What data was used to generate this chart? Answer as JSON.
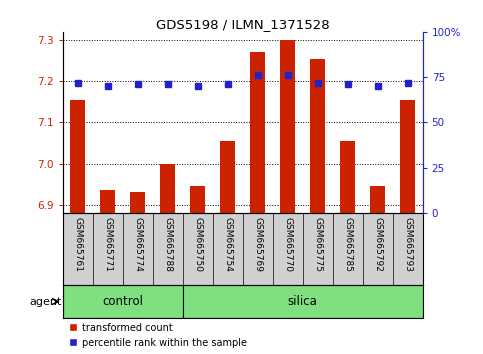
{
  "title": "GDS5198 / ILMN_1371528",
  "samples": [
    "GSM665761",
    "GSM665771",
    "GSM665774",
    "GSM665788",
    "GSM665750",
    "GSM665754",
    "GSM665769",
    "GSM665770",
    "GSM665775",
    "GSM665785",
    "GSM665792",
    "GSM665793"
  ],
  "transformed_count": [
    7.155,
    6.935,
    6.93,
    7.0,
    6.945,
    7.055,
    7.27,
    7.3,
    7.255,
    7.055,
    6.945,
    7.155
  ],
  "percentile_rank": [
    72,
    70,
    71,
    71,
    70,
    71,
    76,
    76,
    72,
    71,
    70,
    72
  ],
  "control_count": 4,
  "silica_count": 8,
  "ylim_left": [
    6.88,
    7.32
  ],
  "ylim_right": [
    0,
    100
  ],
  "yticks_left": [
    6.9,
    7.0,
    7.1,
    7.2,
    7.3
  ],
  "yticks_right": [
    0,
    25,
    50,
    75,
    100
  ],
  "bar_color": "#cc2200",
  "dot_color": "#2222cc",
  "gray_bg": "#d0d0d0",
  "green_bg": "#7fe07f",
  "group_label": "agent",
  "legend_items": [
    "transformed count",
    "percentile rank within the sample"
  ],
  "control_label": "control",
  "silica_label": "silica"
}
